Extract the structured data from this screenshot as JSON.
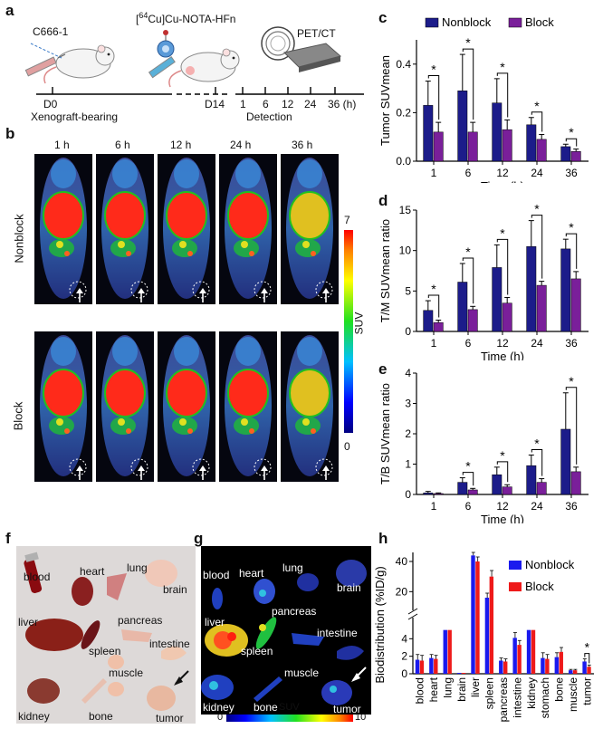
{
  "panel_labels": {
    "a": "a",
    "b": "b",
    "c": "c",
    "d": "d",
    "e": "e",
    "f": "f",
    "g": "g",
    "h": "h"
  },
  "schematic": {
    "cell_line": "C666-1",
    "tracer": "[64Cu]Cu-NOTA-HFn",
    "tracer_prefix": "[",
    "tracer_sup": "64",
    "tracer_rest": "Cu]Cu-NOTA-HFn",
    "scanner": "PET/CT",
    "day0": "D0",
    "day14": "D14",
    "timepoints": [
      "1",
      "6",
      "12",
      "24",
      "36 (h)"
    ],
    "bearing": "Xenograft-bearing",
    "detection": "Detection"
  },
  "pet_images": {
    "timepoints": [
      "1 h",
      "6 h",
      "12 h",
      "24 h",
      "36 h"
    ],
    "row_labels": [
      "Nonblock",
      "Block"
    ],
    "colorbar_max": "7",
    "colorbar_min": "0",
    "colorbar_label": "SUV"
  },
  "tissue_photo": {
    "labels": [
      "blood",
      "heart",
      "lung",
      "brain",
      "liver",
      "pancreas",
      "intestine",
      "spleen",
      "muscle",
      "kidney",
      "bone",
      "tumor"
    ]
  },
  "tissue_pet": {
    "labels": [
      "blood",
      "heart",
      "lung",
      "brain",
      "liver",
      "pancreas",
      "intestine",
      "spleen",
      "muscle",
      "kidney",
      "bone",
      "tumor"
    ],
    "colorbar_label": "SUV",
    "colorbar_min": "0",
    "colorbar_max": "10"
  },
  "chart_data": [
    {
      "id": "c",
      "type": "bar",
      "categories": [
        "1",
        "6",
        "12",
        "24",
        "36"
      ],
      "series": [
        {
          "name": "Nonblock",
          "color": "#1c1c8a",
          "values": [
            0.23,
            0.29,
            0.24,
            0.15,
            0.06
          ],
          "errors": [
            0.1,
            0.15,
            0.1,
            0.03,
            0.01
          ]
        },
        {
          "name": "Block",
          "color": "#7a1f9a",
          "values": [
            0.12,
            0.12,
            0.13,
            0.09,
            0.04
          ],
          "errors": [
            0.04,
            0.04,
            0.04,
            0.02,
            0.01
          ]
        }
      ],
      "significance": [
        "*",
        "*",
        "*",
        "*",
        "*"
      ],
      "xlabel": "Time (h)",
      "ylabel": "Tumor SUVmean",
      "yticks": [
        "0.0",
        "0.2",
        "0.4"
      ],
      "ylim": [
        0,
        0.5
      ],
      "legend": [
        "Nonblock",
        "Block"
      ]
    },
    {
      "id": "d",
      "type": "bar",
      "categories": [
        "1",
        "6",
        "12",
        "24",
        "36"
      ],
      "series": [
        {
          "name": "Nonblock",
          "color": "#1c1c8a",
          "values": [
            2.6,
            6.1,
            7.9,
            10.5,
            10.2
          ],
          "errors": [
            1.2,
            2.3,
            2.8,
            3.2,
            1.2
          ]
        },
        {
          "name": "Block",
          "color": "#7a1f9a",
          "values": [
            1.1,
            2.7,
            3.5,
            5.7,
            6.5
          ],
          "errors": [
            0.3,
            0.4,
            0.7,
            0.5,
            0.9
          ]
        }
      ],
      "significance": [
        "*",
        "*",
        "*",
        "*",
        "*"
      ],
      "xlabel": "Time (h)",
      "ylabel": "T/M SUVmean ratio",
      "yticks": [
        "0",
        "5",
        "10",
        "15"
      ],
      "ylim": [
        0,
        15
      ]
    },
    {
      "id": "e",
      "type": "bar",
      "categories": [
        "1",
        "6",
        "12",
        "24",
        "36"
      ],
      "series": [
        {
          "name": "Nonblock",
          "color": "#1c1c8a",
          "values": [
            0.05,
            0.4,
            0.65,
            0.95,
            2.15
          ],
          "errors": [
            0.05,
            0.15,
            0.25,
            0.35,
            1.2
          ]
        },
        {
          "name": "Block",
          "color": "#7a1f9a",
          "values": [
            0.03,
            0.15,
            0.25,
            0.4,
            0.75
          ],
          "errors": [
            0.02,
            0.05,
            0.07,
            0.12,
            0.15
          ]
        }
      ],
      "significance": [
        "",
        "*",
        "*",
        "*",
        "*"
      ],
      "xlabel": "Time (h)",
      "ylabel": "T/B SUVmean ratio",
      "yticks": [
        "0",
        "1",
        "2",
        "3",
        "4"
      ],
      "ylim": [
        0,
        4
      ]
    },
    {
      "id": "h",
      "type": "bar",
      "categories": [
        "blood",
        "heart",
        "lung",
        "brain",
        "liver",
        "spleen",
        "pancreas",
        "intestine",
        "kidney",
        "stomach",
        "bone",
        "muscle",
        "tumor"
      ],
      "series": [
        {
          "name": "Nonblock",
          "color": "#1a1aee",
          "values": [
            1.6,
            1.8,
            5,
            0.1,
            44,
            16,
            1.5,
            4.1,
            5,
            1.8,
            1.9,
            0.4,
            1.4
          ],
          "errors": [
            0.6,
            0.4,
            0,
            0,
            2,
            3,
            0.3,
            0.6,
            0,
            0.6,
            0.5,
            0.1,
            0.3
          ]
        },
        {
          "name": "Block",
          "color": "#ee1a1a",
          "values": [
            1.5,
            1.7,
            5,
            0.1,
            40,
            30,
            1.4,
            3.3,
            5,
            1.7,
            2.5,
            0.4,
            0.8
          ],
          "errors": [
            0.6,
            0.4,
            0,
            0,
            3,
            4,
            0.3,
            0.5,
            0,
            0.5,
            0.5,
            0.1,
            0.2
          ]
        }
      ],
      "significance_on": "tumor",
      "significance": "*",
      "ylabel": "Biodistribution (%ID/g)",
      "yticks_lower": [
        "0",
        "2",
        "4"
      ],
      "yticks_upper": [
        "20",
        "40"
      ],
      "axis_break": true,
      "legend": [
        "Nonblock",
        "Block"
      ]
    }
  ]
}
